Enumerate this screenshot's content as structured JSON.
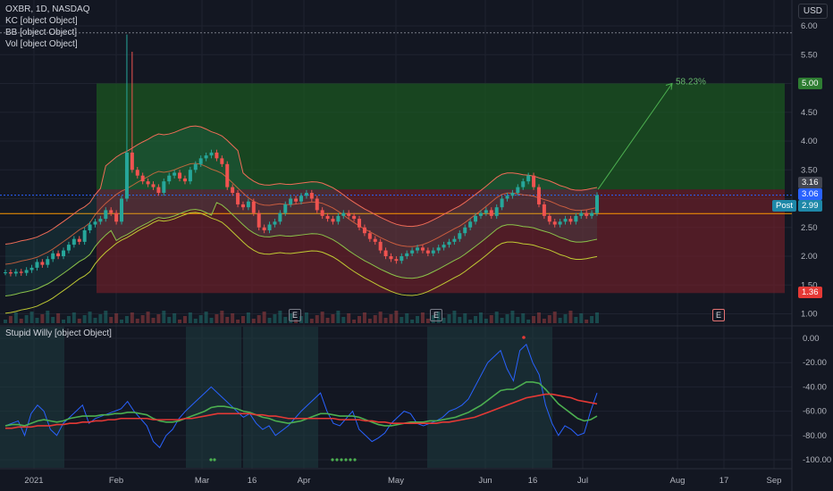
{
  "header": {
    "symbol_line": "OXBR, 1D, NASDAQ",
    "indicators": [
      "KC [object Object]",
      "BB [object Object]",
      "Vol [object Object]"
    ],
    "oscillator_title": "Stupid Willy [object Object]",
    "currency": "USD"
  },
  "price_tags": {
    "target": "5.00",
    "entry_high": "3.16",
    "last": "3.06",
    "post_label": "Post",
    "post_value": "2.99",
    "stop": "1.36",
    "pct_label": "58.23%"
  },
  "earnings_marker": "E",
  "colors": {
    "background": "#131722",
    "up": "#26a69a",
    "down": "#ef5350",
    "profit_zone": "#1b5e20",
    "loss_zone": "#7a1f2a",
    "orange": "#ff9800",
    "line_blue": "#2962ff",
    "green_line": "#4caf50",
    "red_line": "#e53935",
    "tick_text": "#b2b5be"
  },
  "chart_data": [
    {
      "type": "candlestick",
      "title": "OXBR, 1D, NASDAQ",
      "ylim": [
        0.9,
        6.1
      ],
      "yticks": [
        "6.00",
        "5.50",
        "5.00",
        "4.50",
        "4.00",
        "3.50",
        "3.00",
        "2.50",
        "2.00",
        "1.50",
        "1.00"
      ],
      "xticks": [
        "2021",
        "Feb",
        "Mar",
        "16",
        "Apr",
        "May",
        "Jun",
        "16",
        "Jul",
        "Aug",
        "17",
        "Sep"
      ],
      "trade_zone": {
        "target": 5.0,
        "entry": 3.16,
        "stop": 1.36,
        "gain": "58.23%"
      },
      "closes": [
        1.72,
        1.7,
        1.73,
        1.71,
        1.76,
        1.8,
        1.9,
        1.85,
        1.95,
        2.05,
        2.0,
        2.1,
        2.2,
        2.3,
        2.25,
        2.45,
        2.55,
        2.6,
        2.65,
        2.8,
        2.75,
        2.6,
        3.0,
        3.8,
        3.5,
        3.4,
        3.3,
        3.25,
        3.2,
        3.1,
        3.3,
        3.4,
        3.45,
        3.35,
        3.3,
        3.5,
        3.6,
        3.7,
        3.75,
        3.8,
        3.7,
        3.6,
        3.2,
        3.1,
        2.9,
        2.85,
        2.95,
        2.75,
        2.5,
        2.45,
        2.55,
        2.6,
        2.75,
        2.9,
        3.0,
        2.95,
        3.05,
        3.1,
        3.0,
        2.8,
        2.7,
        2.65,
        2.6,
        2.7,
        2.75,
        2.7,
        2.65,
        2.5,
        2.4,
        2.3,
        2.25,
        2.1,
        2.0,
        1.95,
        1.92,
        2.0,
        2.05,
        2.1,
        2.15,
        2.1,
        2.05,
        2.1,
        2.15,
        2.2,
        2.25,
        2.3,
        2.4,
        2.5,
        2.6,
        2.7,
        2.75,
        2.8,
        2.7,
        2.85,
        3.0,
        3.05,
        3.1,
        3.2,
        3.3,
        3.4,
        3.2,
        2.9,
        2.7,
        2.6,
        2.55,
        2.6,
        2.65,
        2.6,
        2.7,
        2.75,
        2.7,
        2.75,
        3.06
      ]
    },
    {
      "type": "line",
      "title": "Stupid Willy [object Object]",
      "ylim": [
        -105,
        5
      ],
      "yticks": [
        "0.00",
        "-20.00",
        "-40.00",
        "-60.00",
        "-80.00",
        "-100.00"
      ],
      "series": [
        {
          "name": "",
          "values": [
            -72,
            -70,
            -68,
            -80,
            -62,
            -55,
            -60,
            -75,
            -80,
            -70,
            -65,
            -60,
            -55,
            -70,
            -66,
            -64,
            -62,
            -60,
            -58,
            -52,
            -60,
            -66,
            -72,
            -85,
            -90,
            -80,
            -75,
            -66,
            -60,
            -55,
            -50,
            -45,
            -40,
            -45,
            -50,
            -55,
            -60,
            -65,
            -62,
            -70,
            -75,
            -72,
            -80,
            -76,
            -72,
            -66,
            -60,
            -55,
            -50,
            -45,
            -60,
            -70,
            -72,
            -66,
            -60,
            -75,
            -80,
            -85,
            -82,
            -78,
            -70,
            -65,
            -60,
            -62,
            -70,
            -72,
            -70,
            -68,
            -65,
            -60,
            -58,
            -55,
            -50,
            -40,
            -30,
            -20,
            -15,
            -10,
            -25,
            -35,
            -10,
            -5,
            -20,
            -30,
            -55,
            -70,
            -80,
            -72,
            -75,
            -80,
            -78,
            -60,
            -45
          ]
        },
        {
          "name": "",
          "values": [
            -72,
            -71,
            -71,
            -72,
            -70,
            -68,
            -67,
            -68,
            -69,
            -68,
            -66,
            -65,
            -64,
            -64,
            -64,
            -63,
            -63,
            -62,
            -62,
            -61,
            -61,
            -62,
            -63,
            -66,
            -68,
            -69,
            -69,
            -68,
            -66,
            -64,
            -62,
            -60,
            -57,
            -56,
            -56,
            -57,
            -58,
            -60,
            -61,
            -63,
            -65,
            -66,
            -68,
            -69,
            -70,
            -69,
            -68,
            -66,
            -64,
            -62,
            -62,
            -63,
            -64,
            -64,
            -64,
            -65,
            -67,
            -69,
            -71,
            -72,
            -72,
            -71,
            -70,
            -69,
            -69,
            -69,
            -68,
            -68,
            -67,
            -66,
            -65,
            -63,
            -61,
            -58,
            -55,
            -51,
            -47,
            -43,
            -42,
            -42,
            -39,
            -36,
            -36,
            -37,
            -42,
            -48,
            -54,
            -58,
            -62,
            -66,
            -68,
            -67,
            -64
          ]
        },
        {
          "name": "",
          "values": [
            -74,
            -74,
            -73,
            -73,
            -73,
            -72,
            -72,
            -72,
            -71,
            -71,
            -70,
            -70,
            -69,
            -69,
            -68,
            -68,
            -67,
            -67,
            -66,
            -66,
            -66,
            -66,
            -66,
            -67,
            -67,
            -67,
            -67,
            -67,
            -66,
            -66,
            -65,
            -64,
            -63,
            -62,
            -62,
            -62,
            -62,
            -62,
            -62,
            -63,
            -63,
            -64,
            -64,
            -65,
            -66,
            -66,
            -66,
            -66,
            -66,
            -66,
            -66,
            -66,
            -67,
            -67,
            -67,
            -67,
            -68,
            -68,
            -69,
            -69,
            -70,
            -70,
            -70,
            -70,
            -70,
            -70,
            -70,
            -70,
            -69,
            -69,
            -68,
            -67,
            -66,
            -65,
            -63,
            -61,
            -59,
            -57,
            -55,
            -53,
            -51,
            -49,
            -48,
            -47,
            -46,
            -46,
            -47,
            -48,
            -49,
            -51,
            -52,
            -53,
            -54
          ]
        }
      ]
    }
  ]
}
